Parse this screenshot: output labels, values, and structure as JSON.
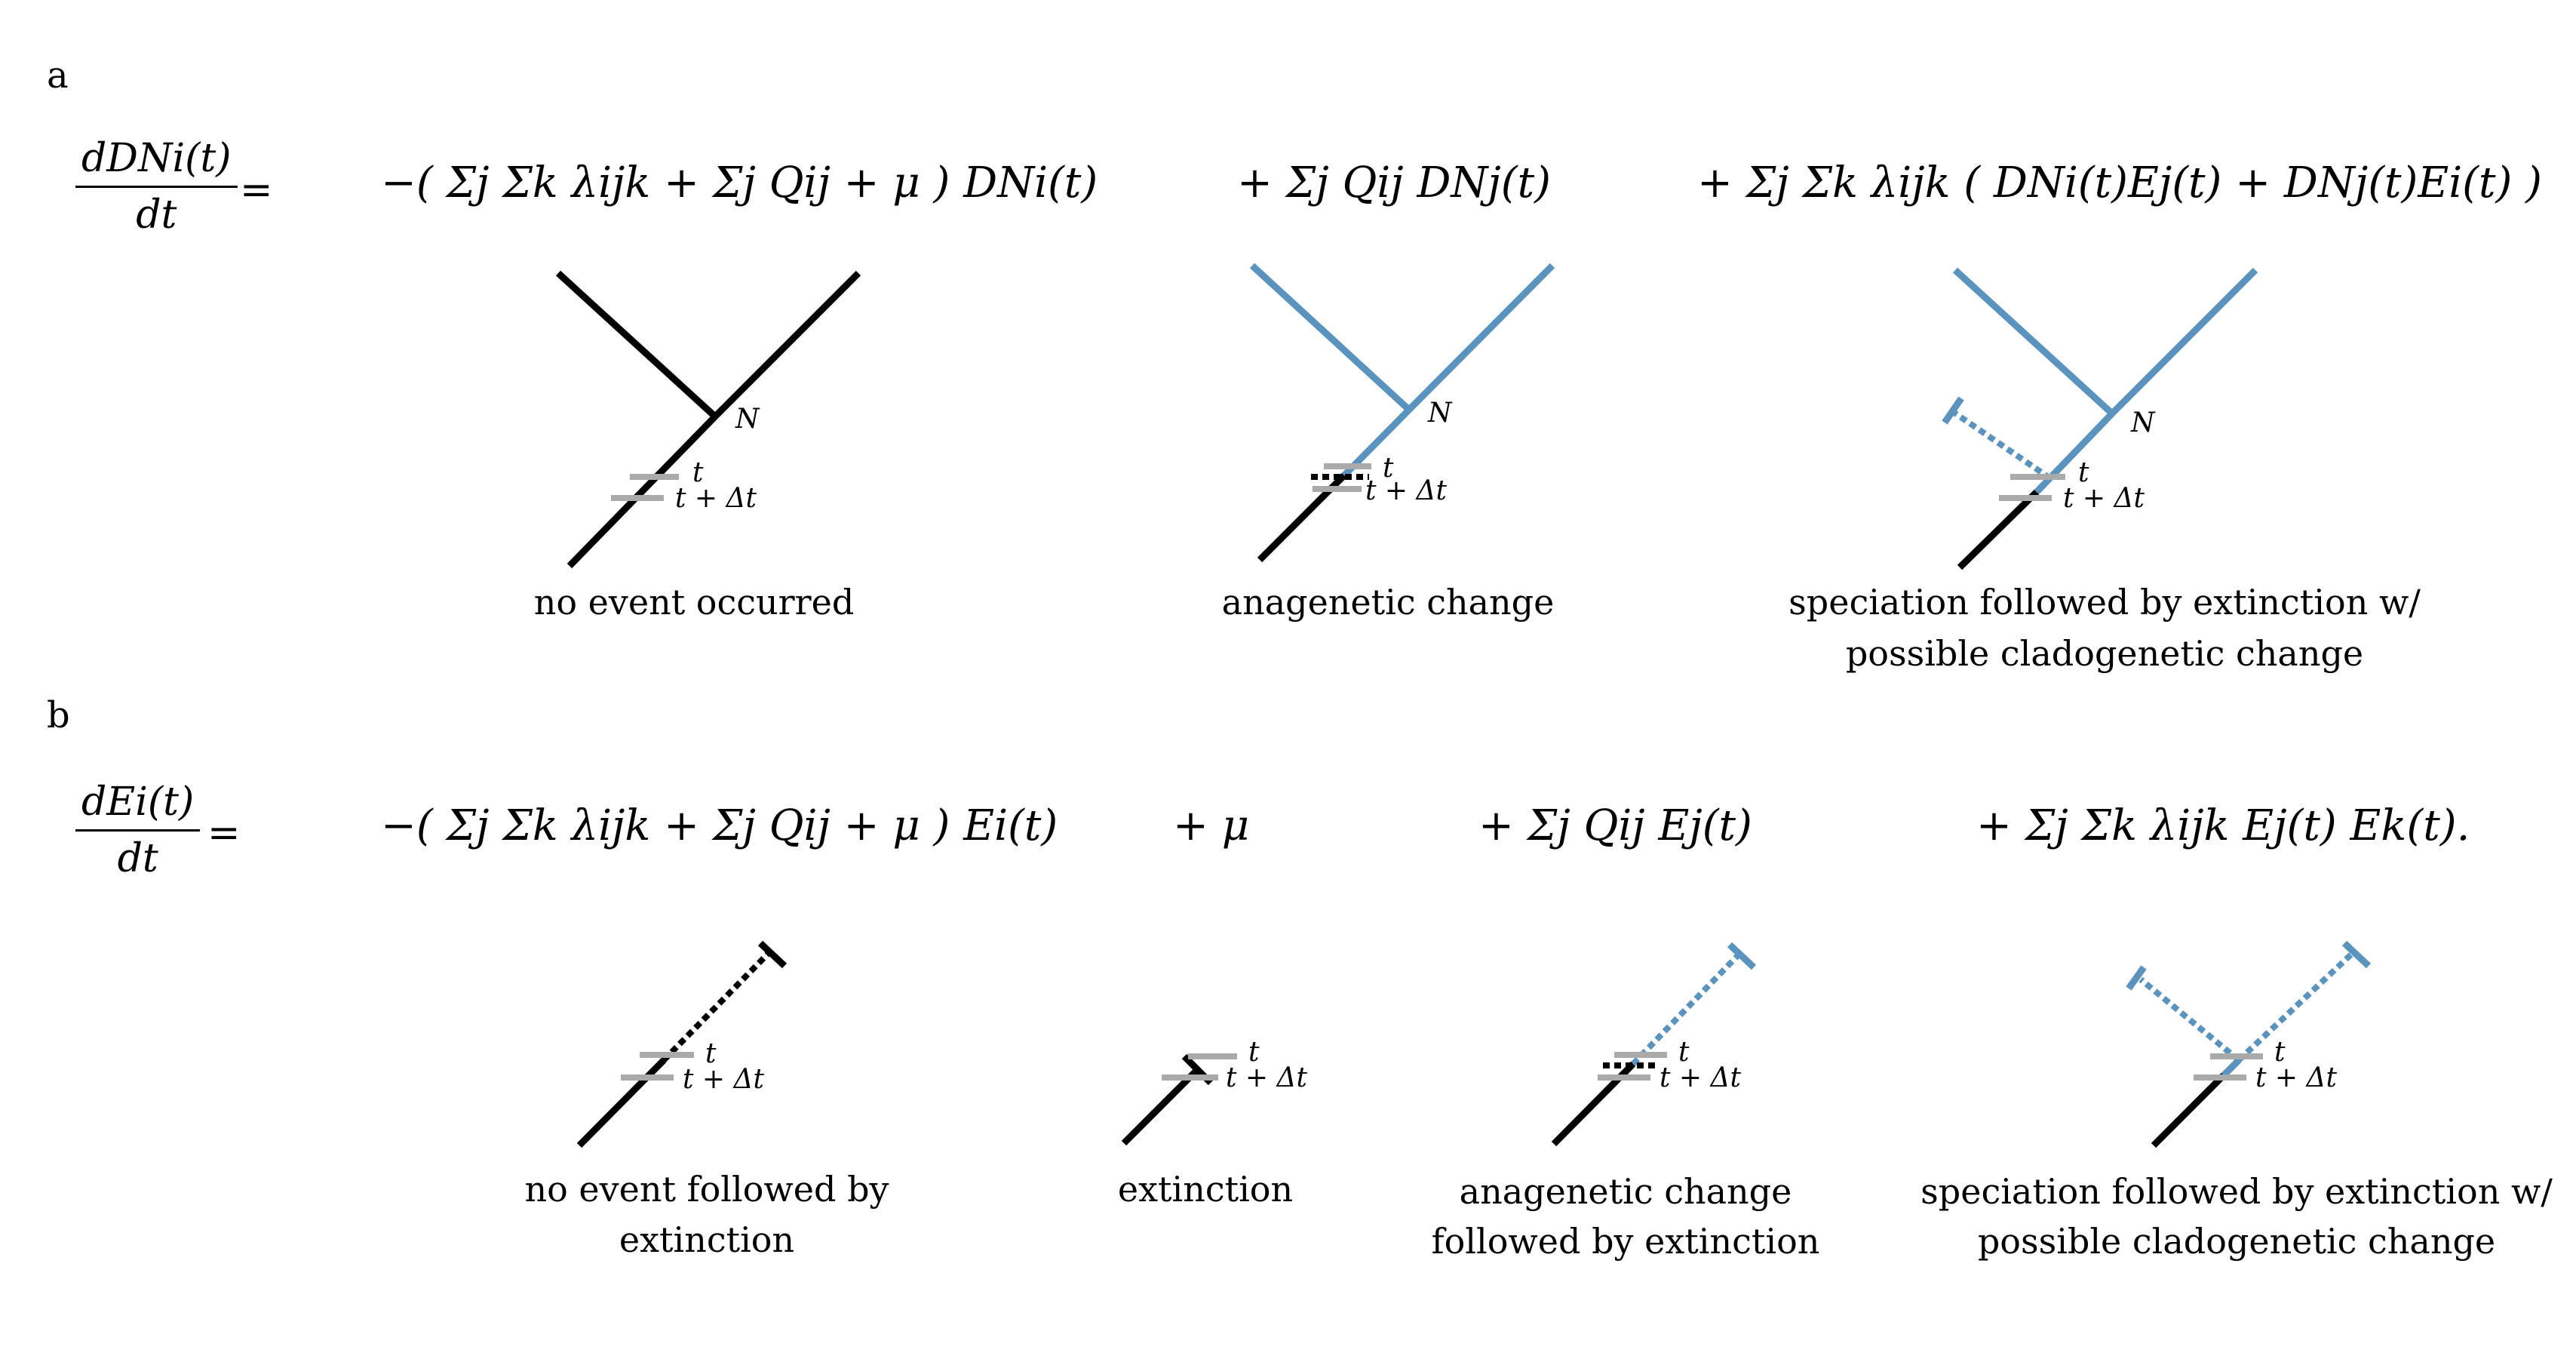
{
  "panels": {
    "a": {
      "label": "a",
      "lhs_num": "dDNi(t)",
      "lhs_den": "dt",
      "equals": "=",
      "term1": "−( Σj Σk λijk + Σj Qij + μ ) DNi(t)",
      "term2": "+ Σj Qij DNj(t)",
      "term3": "+ Σj Σk λijk ( DNi(t)Ej(t) + DNj(t)Ei(t) )",
      "captions": [
        "no event occurred",
        "anagenetic change",
        "speciation followed by extinction w/",
        "possible cladogenetic change"
      ],
      "node_label": "N",
      "t_label": "t",
      "tdt_label": "t + Δt"
    },
    "b": {
      "label": "b",
      "lhs_num": "dEi(t)",
      "lhs_den": "dt",
      "equals": "=",
      "term1": "−( Σj Σk λijk + Σj Qij + μ ) Ei(t)",
      "term2": "+ μ",
      "term3": "+ Σj Qij Ej(t)",
      "term4": "+ Σj Σk λijk Ej(t) Ek(t).",
      "captions": [
        "no event followed by",
        "extinction",
        "extinction",
        "anagenetic change",
        "followed by extinction",
        "speciation followed by extinction w/",
        "possible cladogenetic change"
      ],
      "t_label": "t",
      "tdt_label": "t + Δt"
    }
  },
  "colors": {
    "black_branch": "#000000",
    "blue_branch": "#5b93bf",
    "time_marker": "#aaaaaa"
  }
}
